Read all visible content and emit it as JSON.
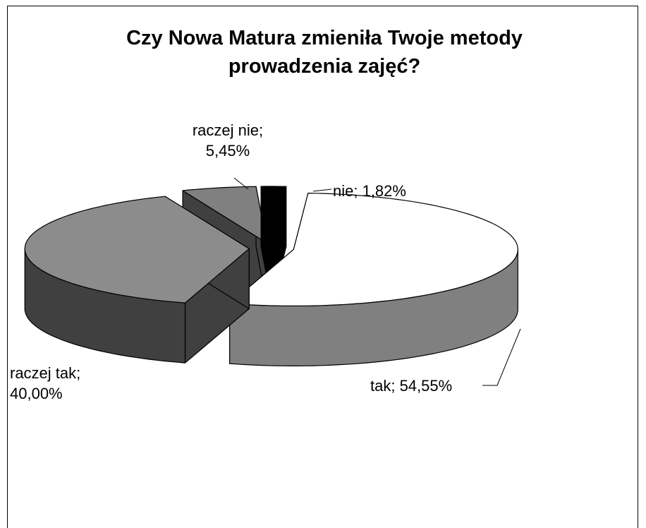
{
  "chart_data": {
    "type": "pie3d",
    "title": "Czy Nowa Matura zmieniła Twoje metody prowadzenia zajęć?",
    "series": [
      {
        "values": [
          5.45,
          1.82,
          54.55,
          40.0
        ],
        "value_labels": [
          "raczej nie; 5,45%",
          "nie; 1,82%",
          "tak; 54,55%",
          "raczej tak; 40,00%"
        ],
        "colors": [
          "#808080",
          "#000000",
          "#ffffff",
          "#8c8c8c"
        ],
        "side_colors": [
          "#404040",
          "#000000",
          "#808080",
          "#404040"
        ]
      }
    ]
  }
}
